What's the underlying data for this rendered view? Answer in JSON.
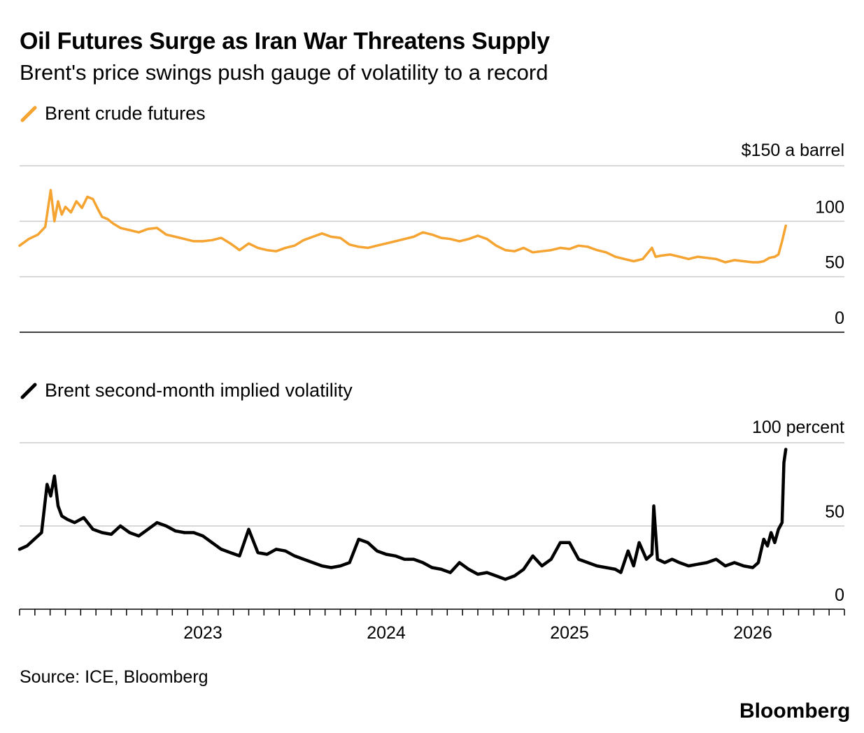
{
  "title": "Oil Futures Surge as Iran War Threatens Supply",
  "subtitle": "Brent's price swings push gauge of volatility to a record",
  "source": "Source: ICE, Bloomberg",
  "wordmark": "Bloomberg",
  "colors": {
    "price": "#F5A331",
    "vol": "#000000",
    "grid": "#CCCCCC"
  },
  "chart_data": [
    {
      "type": "line",
      "legend": "Brent crude futures",
      "unit_label": "$150 a barrel",
      "yticks": [
        {
          "value": 0,
          "label": "0"
        },
        {
          "value": 50,
          "label": "50"
        },
        {
          "value": 100,
          "label": "100"
        }
      ],
      "ylim": [
        0,
        150
      ],
      "xlim": [
        2022.0,
        2026.5
      ],
      "x": [
        2022.0,
        2022.05,
        2022.1,
        2022.14,
        2022.17,
        2022.19,
        2022.21,
        2022.23,
        2022.25,
        2022.28,
        2022.31,
        2022.34,
        2022.37,
        2022.4,
        2022.43,
        2022.45,
        2022.48,
        2022.51,
        2022.55,
        2022.6,
        2022.65,
        2022.7,
        2022.75,
        2022.8,
        2022.85,
        2022.9,
        2022.95,
        2023.0,
        2023.05,
        2023.1,
        2023.15,
        2023.2,
        2023.25,
        2023.3,
        2023.35,
        2023.4,
        2023.45,
        2023.5,
        2023.55,
        2023.6,
        2023.65,
        2023.7,
        2023.75,
        2023.8,
        2023.85,
        2023.9,
        2023.95,
        2024.0,
        2024.05,
        2024.1,
        2024.15,
        2024.2,
        2024.25,
        2024.3,
        2024.35,
        2024.4,
        2024.45,
        2024.5,
        2024.55,
        2024.6,
        2024.65,
        2024.7,
        2024.75,
        2024.8,
        2024.85,
        2024.9,
        2024.95,
        2025.0,
        2025.05,
        2025.1,
        2025.15,
        2025.2,
        2025.25,
        2025.3,
        2025.35,
        2025.4,
        2025.45,
        2025.47,
        2025.5,
        2025.55,
        2025.6,
        2025.65,
        2025.7,
        2025.75,
        2025.8,
        2025.85,
        2025.9,
        2025.95,
        2026.0,
        2026.03,
        2026.06,
        2026.09,
        2026.12,
        2026.14,
        2026.16,
        2026.18
      ],
      "y": [
        78,
        84,
        88,
        95,
        128,
        100,
        118,
        106,
        113,
        108,
        118,
        112,
        122,
        120,
        110,
        104,
        102,
        98,
        94,
        92,
        90,
        93,
        94,
        88,
        86,
        84,
        82,
        82,
        83,
        85,
        80,
        74,
        80,
        76,
        74,
        73,
        76,
        78,
        83,
        86,
        89,
        86,
        85,
        79,
        77,
        76,
        78,
        80,
        82,
        84,
        86,
        90,
        88,
        85,
        84,
        82,
        84,
        87,
        84,
        78,
        74,
        73,
        76,
        72,
        73,
        74,
        76,
        75,
        78,
        77,
        74,
        72,
        68,
        66,
        64,
        66,
        76,
        68,
        69,
        70,
        68,
        66,
        68,
        67,
        66,
        63,
        65,
        64,
        63,
        63,
        64,
        67,
        68,
        70,
        82,
        96
      ]
    },
    {
      "type": "line",
      "legend": "Brent second-month implied volatility",
      "unit_label": "100 percent",
      "yticks": [
        {
          "value": 0,
          "label": "0"
        },
        {
          "value": 50,
          "label": "50"
        }
      ],
      "ylim": [
        0,
        100
      ],
      "xlim": [
        2022.0,
        2026.5
      ],
      "xticks": [
        {
          "value": 2023,
          "label": "2023"
        },
        {
          "value": 2024,
          "label": "2024"
        },
        {
          "value": 2025,
          "label": "2025"
        },
        {
          "value": 2026,
          "label": "2026"
        }
      ],
      "x": [
        2022.0,
        2022.04,
        2022.08,
        2022.12,
        2022.15,
        2022.17,
        2022.19,
        2022.21,
        2022.23,
        2022.26,
        2022.3,
        2022.35,
        2022.4,
        2022.45,
        2022.5,
        2022.55,
        2022.6,
        2022.65,
        2022.7,
        2022.75,
        2022.8,
        2022.85,
        2022.9,
        2022.95,
        2023.0,
        2023.05,
        2023.1,
        2023.15,
        2023.2,
        2023.25,
        2023.3,
        2023.35,
        2023.4,
        2023.45,
        2023.5,
        2023.55,
        2023.6,
        2023.65,
        2023.7,
        2023.75,
        2023.8,
        2023.85,
        2023.9,
        2023.95,
        2024.0,
        2024.05,
        2024.1,
        2024.15,
        2024.2,
        2024.25,
        2024.3,
        2024.35,
        2024.4,
        2024.45,
        2024.5,
        2024.55,
        2024.6,
        2024.65,
        2024.7,
        2024.75,
        2024.8,
        2024.85,
        2024.9,
        2024.95,
        2025.0,
        2025.05,
        2025.1,
        2025.15,
        2025.2,
        2025.25,
        2025.28,
        2025.32,
        2025.35,
        2025.38,
        2025.42,
        2025.45,
        2025.46,
        2025.48,
        2025.52,
        2025.56,
        2025.6,
        2025.65,
        2025.7,
        2025.75,
        2025.8,
        2025.85,
        2025.9,
        2025.95,
        2026.0,
        2026.03,
        2026.06,
        2026.08,
        2026.1,
        2026.12,
        2026.14,
        2026.15,
        2026.16,
        2026.17,
        2026.18
      ],
      "y": [
        36,
        38,
        42,
        46,
        75,
        68,
        80,
        62,
        56,
        54,
        52,
        55,
        48,
        46,
        45,
        50,
        46,
        44,
        48,
        52,
        50,
        47,
        46,
        46,
        44,
        40,
        36,
        34,
        32,
        48,
        34,
        33,
        36,
        35,
        32,
        30,
        28,
        26,
        25,
        26,
        28,
        42,
        40,
        35,
        33,
        32,
        30,
        30,
        28,
        25,
        24,
        22,
        28,
        24,
        21,
        22,
        20,
        18,
        20,
        24,
        32,
        26,
        30,
        40,
        40,
        30,
        28,
        26,
        25,
        24,
        22,
        35,
        26,
        40,
        30,
        33,
        62,
        30,
        28,
        30,
        28,
        26,
        27,
        28,
        30,
        26,
        28,
        26,
        25,
        28,
        42,
        38,
        46,
        40,
        48,
        50,
        52,
        88,
        96
      ]
    }
  ]
}
